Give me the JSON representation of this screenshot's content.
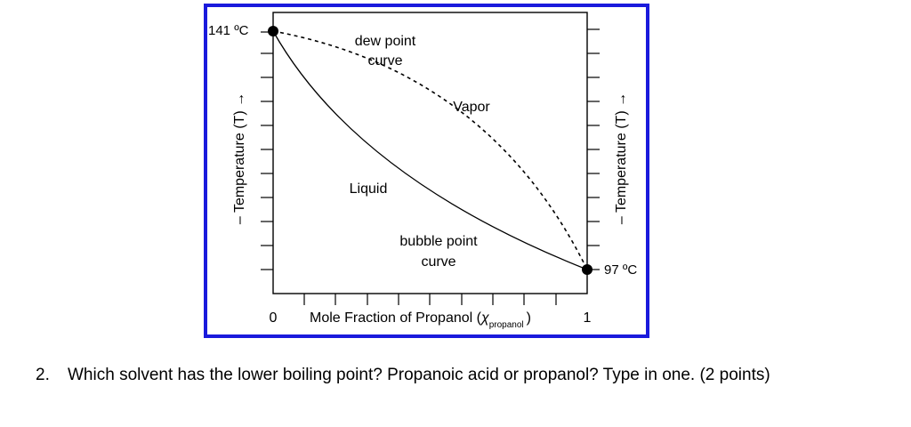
{
  "diagram": {
    "frame_color": "#1a1adc",
    "labels": {
      "top_left_temp": "141 ºC",
      "bottom_right_temp": "97 ºC",
      "dew_line1": "dew point",
      "dew_line2": "curve",
      "vapor": "Vapor",
      "liquid": "Liquid",
      "bubble_line1": "bubble point",
      "bubble_line2": "curve",
      "x_min": "0",
      "x_max": "1",
      "x_axis_title": "Mole Fraction of Propanol (",
      "x_axis_chi": "χ",
      "x_axis_subscript": "propanol",
      "x_axis_close": ")",
      "left_axis_title": "– Temperature (T) →",
      "right_axis_title": "– Temperature (T) →"
    }
  },
  "question": {
    "number": "2.",
    "text": "Which solvent has the lower boiling point?  Propanoic acid or propanol?  Type in one.  (2 points)"
  }
}
